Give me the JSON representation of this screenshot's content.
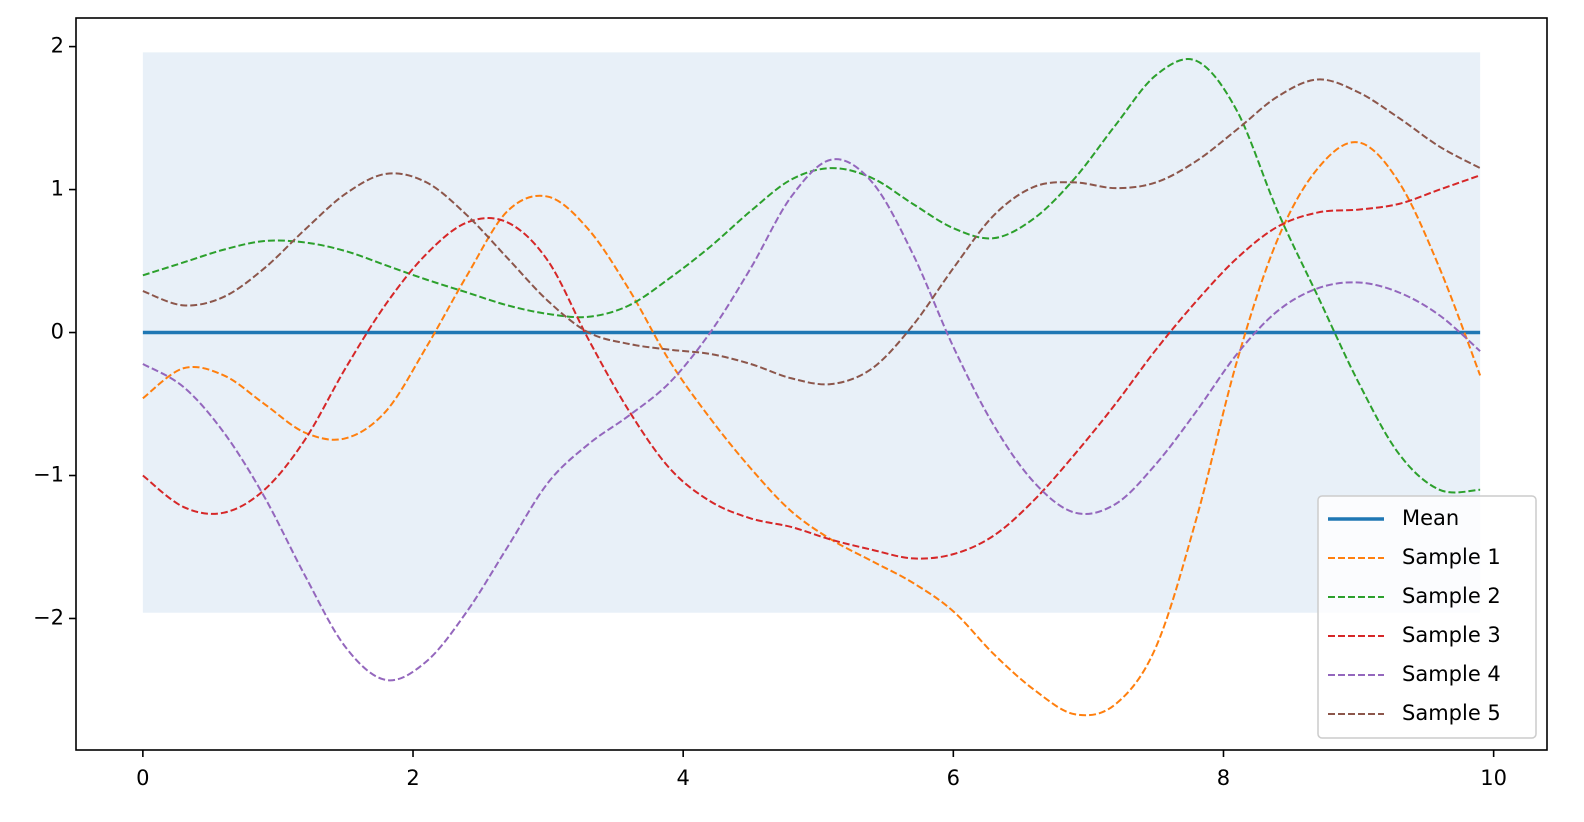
{
  "chart_data": {
    "type": "line",
    "x": [
      0,
      0.3,
      0.6,
      0.9,
      1.2,
      1.5,
      1.8,
      2.1,
      2.4,
      2.7,
      3.0,
      3.3,
      3.6,
      3.9,
      4.2,
      4.5,
      4.8,
      5.1,
      5.4,
      5.7,
      6.0,
      6.3,
      6.6,
      6.9,
      7.2,
      7.5,
      7.8,
      8.1,
      8.4,
      8.7,
      9.0,
      9.3,
      9.6,
      9.9
    ],
    "band": {
      "color": "#e8f0f8",
      "lower": [
        -1.96,
        -1.96,
        -1.96,
        -1.96,
        -1.96,
        -1.96,
        -1.96,
        -1.96,
        -1.96,
        -1.96,
        -1.96,
        -1.96,
        -1.96,
        -1.96,
        -1.96,
        -1.96,
        -1.96,
        -1.96,
        -1.96,
        -1.96,
        -1.96,
        -1.96,
        -1.96,
        -1.96,
        -1.96,
        -1.96,
        -1.96,
        -1.96,
        -1.96,
        -1.96,
        -1.96,
        -1.96,
        -1.96,
        -1.96
      ],
      "upper": [
        1.96,
        1.96,
        1.96,
        1.96,
        1.96,
        1.96,
        1.96,
        1.96,
        1.96,
        1.96,
        1.96,
        1.96,
        1.96,
        1.96,
        1.96,
        1.96,
        1.96,
        1.96,
        1.96,
        1.96,
        1.96,
        1.96,
        1.96,
        1.96,
        1.96,
        1.96,
        1.96,
        1.96,
        1.96,
        1.96,
        1.96,
        1.96,
        1.96,
        1.96
      ]
    },
    "series": [
      {
        "name": "Mean",
        "color": "#1f77b4",
        "dashed": false,
        "values": [
          0,
          0,
          0,
          0,
          0,
          0,
          0,
          0,
          0,
          0,
          0,
          0,
          0,
          0,
          0,
          0,
          0,
          0,
          0,
          0,
          0,
          0,
          0,
          0,
          0,
          0,
          0,
          0,
          0,
          0,
          0,
          0,
          0,
          0
        ]
      },
      {
        "name": "Sample 1",
        "color": "#ff7f0e",
        "dashed": true,
        "values": [
          -0.46,
          -0.25,
          -0.3,
          -0.5,
          -0.7,
          -0.74,
          -0.55,
          -0.1,
          0.4,
          0.85,
          0.95,
          0.72,
          0.3,
          -0.2,
          -0.6,
          -0.95,
          -1.25,
          -1.45,
          -1.6,
          -1.75,
          -1.95,
          -2.25,
          -2.5,
          -2.67,
          -2.6,
          -2.2,
          -1.3,
          -0.2,
          0.65,
          1.15,
          1.33,
          1.05,
          0.45,
          -0.3
        ]
      },
      {
        "name": "Sample 2",
        "color": "#2ca02c",
        "dashed": true,
        "values": [
          0.4,
          0.49,
          0.58,
          0.64,
          0.63,
          0.57,
          0.47,
          0.37,
          0.28,
          0.19,
          0.13,
          0.11,
          0.19,
          0.38,
          0.6,
          0.85,
          1.07,
          1.15,
          1.08,
          0.9,
          0.73,
          0.66,
          0.8,
          1.08,
          1.45,
          1.8,
          1.9,
          1.55,
          0.85,
          0.25,
          -0.35,
          -0.85,
          -1.1,
          -1.1
        ]
      },
      {
        "name": "Sample 3",
        "color": "#d62728",
        "dashed": true,
        "values": [
          -1.0,
          -1.22,
          -1.26,
          -1.1,
          -0.75,
          -0.25,
          0.2,
          0.55,
          0.77,
          0.77,
          0.5,
          -0.05,
          -0.55,
          -0.95,
          -1.18,
          -1.3,
          -1.36,
          -1.45,
          -1.52,
          -1.58,
          -1.55,
          -1.42,
          -1.17,
          -0.85,
          -0.5,
          -0.12,
          0.22,
          0.52,
          0.74,
          0.84,
          0.86,
          0.9,
          1.0,
          1.1
        ]
      },
      {
        "name": "Sample 4",
        "color": "#9467bd",
        "dashed": true,
        "values": [
          -0.22,
          -0.38,
          -0.7,
          -1.15,
          -1.7,
          -2.2,
          -2.43,
          -2.3,
          -1.95,
          -1.5,
          -1.05,
          -0.78,
          -0.58,
          -0.35,
          0.0,
          0.45,
          0.95,
          1.21,
          1.05,
          0.55,
          -0.1,
          -0.65,
          -1.05,
          -1.26,
          -1.2,
          -0.92,
          -0.55,
          -0.15,
          0.15,
          0.31,
          0.35,
          0.28,
          0.12,
          -0.13
        ]
      },
      {
        "name": "Sample 5",
        "color": "#8c564b",
        "dashed": true,
        "values": [
          0.29,
          0.19,
          0.25,
          0.45,
          0.72,
          0.97,
          1.11,
          1.05,
          0.82,
          0.52,
          0.22,
          0.0,
          -0.08,
          -0.12,
          -0.15,
          -0.22,
          -0.32,
          -0.36,
          -0.25,
          0.05,
          0.45,
          0.82,
          1.02,
          1.05,
          1.01,
          1.05,
          1.2,
          1.42,
          1.65,
          1.77,
          1.68,
          1.5,
          1.3,
          1.15
        ]
      }
    ],
    "xlim": [
      -0.495,
      10.395
    ],
    "xticks": [
      0,
      2,
      4,
      6,
      8,
      10
    ],
    "ylim": [
      -2.92,
      2.2
    ],
    "yticks": [
      {
        "value": -2,
        "label": "−2"
      },
      {
        "value": -1,
        "label": "−1"
      },
      0,
      1,
      2
    ],
    "legend": "lower right",
    "grid": false
  }
}
